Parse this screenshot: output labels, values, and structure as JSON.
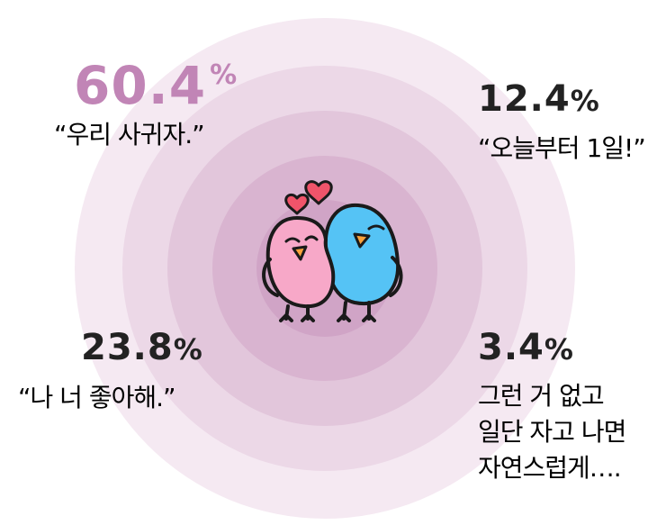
{
  "chart_data": {
    "type": "pie",
    "categories": [
      "“우리 사귀자.”",
      "“오늘부터 1일!”",
      "“나 너 좋아해.”",
      "그런 거 없고 일단 자고 나면 자연스럽게…."
    ],
    "values": [
      60.4,
      12.4,
      23.8,
      3.4
    ],
    "unit": "%",
    "items": [
      {
        "value": "60.4",
        "unit": "%",
        "label_lines": [
          "“우리 사귀자.”"
        ]
      },
      {
        "value": "12.4",
        "unit": "%",
        "label_lines": [
          "“오늘부터 1일!”"
        ]
      },
      {
        "value": "23.8",
        "unit": "%",
        "label_lines": [
          "“나 너 좋아해.”"
        ]
      },
      {
        "value": "3.4",
        "unit": "%",
        "label_lines": [
          "그런 거 없고",
          "일단 자고 나면",
          "자연스럽게…."
        ]
      }
    ]
  },
  "colors": {
    "highlight": "#c185b6",
    "text": "#222222",
    "ring_1": "#f5e9f2",
    "ring_2": "#ecd8e7",
    "ring_3": "#e2c6db",
    "ring_4": "#d9b4d0",
    "ring_5": "#d0a4c6",
    "bird_pink": "#f7a8c8",
    "bird_blue": "#55c3f5",
    "heart": "#f0546a",
    "beak": "#f9a23b"
  },
  "icons": {
    "mascot": "two-love-birds-icon",
    "hearts": "heart-icon"
  }
}
